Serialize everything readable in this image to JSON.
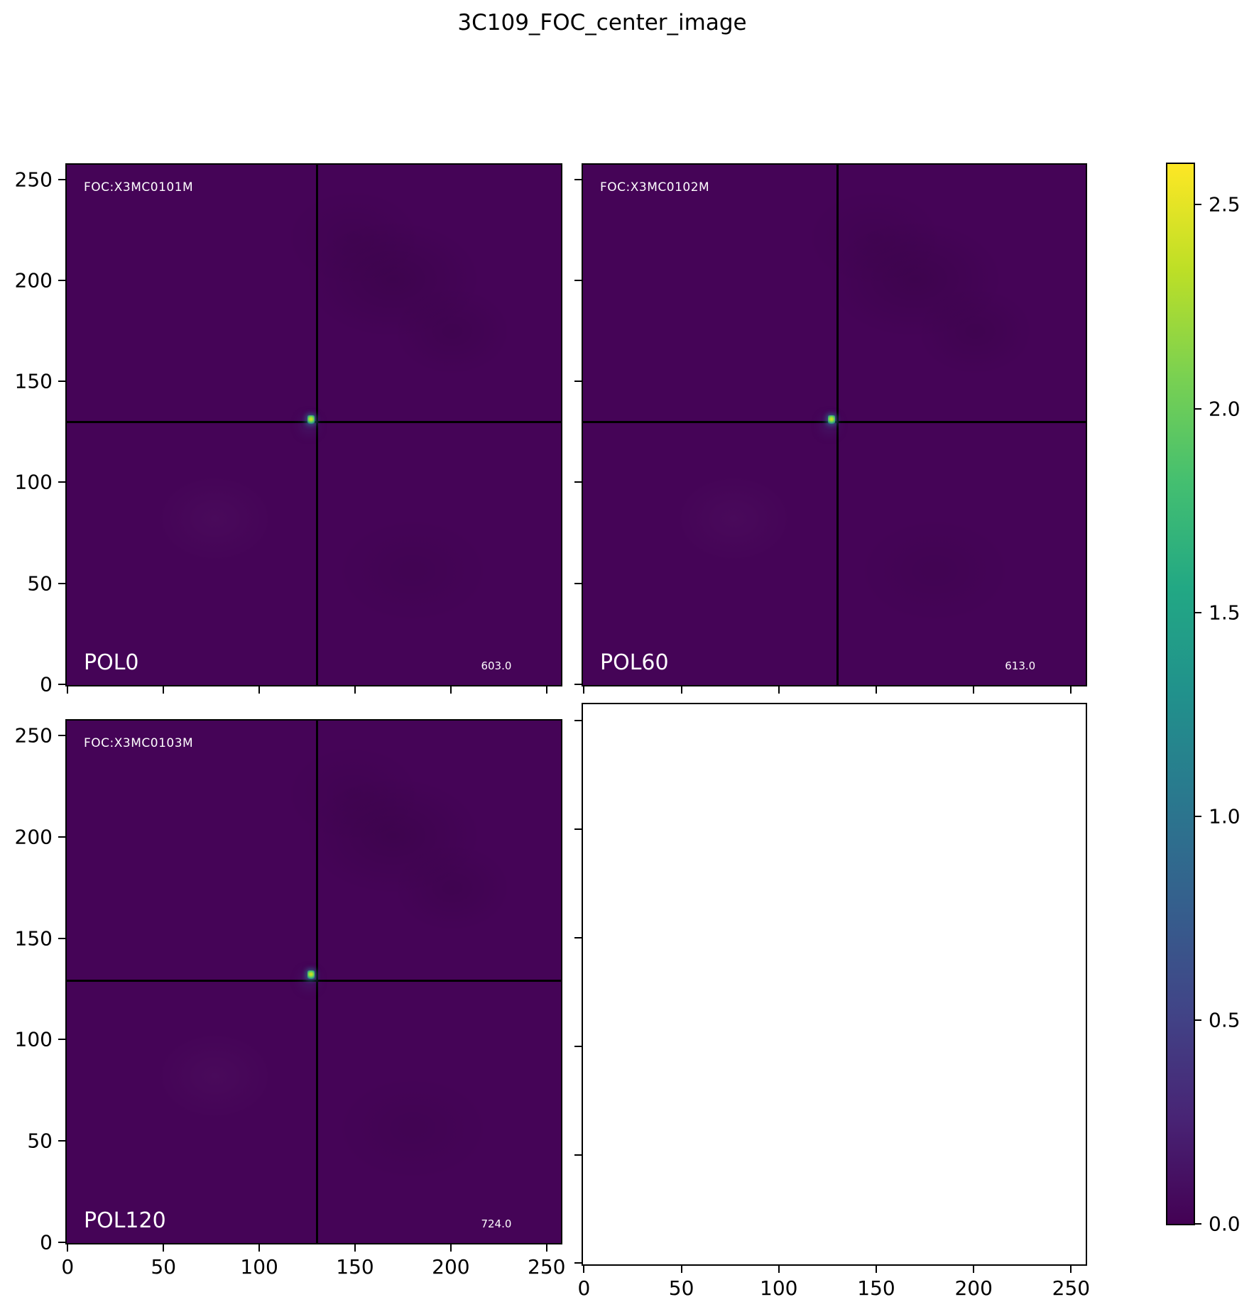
{
  "title": "3C109_FOC_center_image",
  "panels": [
    {
      "foc_label": "FOC:X3MC0101M",
      "pol_label": "POL0",
      "value_label": "603.0"
    },
    {
      "foc_label": "FOC:X3MC0102M",
      "pol_label": "POL60",
      "value_label": "613.0"
    },
    {
      "foc_label": "FOC:X3MC0103M",
      "pol_label": "POL120",
      "value_label": "724.0"
    }
  ],
  "axes": {
    "x_tick_labels": [
      "0",
      "50",
      "100",
      "150",
      "200",
      "250"
    ],
    "y_tick_labels": [
      "0",
      "50",
      "100",
      "150",
      "200",
      "250"
    ]
  },
  "colorbar": {
    "tick_labels": [
      "0.0",
      "0.5",
      "1.0",
      "1.5",
      "2.0",
      "2.5"
    ]
  },
  "colors": {
    "background_value_color": "#450457",
    "peak_core_color": "#dfe318",
    "peak_halo_color": "#2a788e",
    "crosshair_color": "#000000",
    "in_plot_text_color": "#ffffff"
  },
  "chart_data": {
    "type": "heatmap",
    "title": "3C109_FOC_center_image",
    "colormap": "viridis",
    "grid": false,
    "x_ticks": [
      0,
      50,
      100,
      150,
      200,
      250
    ],
    "y_ticks": [
      0,
      50,
      100,
      150,
      200,
      250
    ],
    "x_range": [
      -0.5,
      257.5
    ],
    "y_range": [
      -0.5,
      257.5
    ],
    "colorbar": {
      "vmin": 0.0,
      "vmax": 2.6,
      "ticks": [
        0.0,
        0.5,
        1.0,
        1.5,
        2.0,
        2.5
      ],
      "position": "right"
    },
    "panels": [
      {
        "name": "POL0",
        "foc_id": "FOC:X3MC0101M",
        "annotation_value": 603.0,
        "crosshair_x": 130,
        "crosshair_y": 130,
        "source_x": 127,
        "source_y": 131,
        "source_peak": 2.6,
        "background_level": 0.0
      },
      {
        "name": "POL60",
        "foc_id": "FOC:X3MC0102M",
        "annotation_value": 613.0,
        "crosshair_x": 130,
        "crosshair_y": 130,
        "source_x": 127,
        "source_y": 131,
        "source_peak": 2.6,
        "background_level": 0.0
      },
      {
        "name": "POL120",
        "foc_id": "FOC:X3MC0103M",
        "annotation_value": 724.0,
        "crosshair_x": 130,
        "crosshair_y": 129,
        "source_x": 127,
        "source_y": 132,
        "source_peak": 2.6,
        "background_level": 0.0
      },
      {
        "name": "empty",
        "blank": true
      }
    ]
  }
}
